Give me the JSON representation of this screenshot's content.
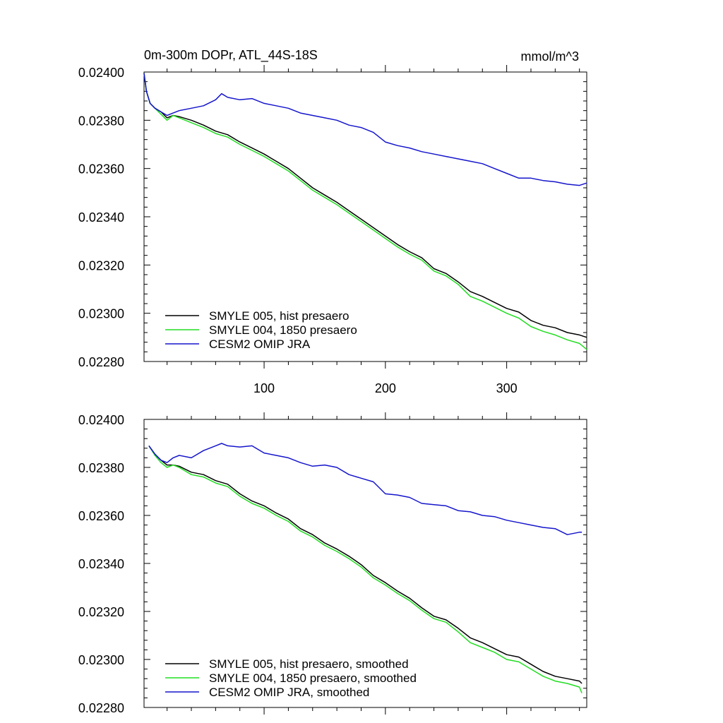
{
  "figure": {
    "title": "0m-300m DOPr, ATL_44S-18S",
    "units": "mmol/m^3"
  },
  "colors": {
    "black": "#000000",
    "green": "#22dd22",
    "blue": "#1515cc"
  },
  "chart_data": [
    {
      "type": "line",
      "title": "0m-300m DOPr, ATL_44S-18S",
      "units_label": "mmol/m^3",
      "xlim": [
        1,
        366
      ],
      "ylim": [
        0.0228,
        0.024
      ],
      "x_ticks": [
        100,
        200,
        300
      ],
      "x_tick_labels": [
        "100",
        "200",
        "300"
      ],
      "y_ticks": [
        0.0228,
        0.023,
        0.0232,
        0.0234,
        0.0236,
        0.0238,
        0.024
      ],
      "y_tick_labels": [
        "0.02280",
        "0.02300",
        "0.02320",
        "0.02340",
        "0.02360",
        "0.02380",
        "0.02400"
      ],
      "legend_position": "bottom-left",
      "series": [
        {
          "name": "SMYLE 005, hist presaero",
          "color": "#000000",
          "x": [
            1,
            3,
            6,
            10,
            15,
            20,
            25,
            30,
            40,
            50,
            60,
            70,
            80,
            90,
            100,
            110,
            120,
            130,
            140,
            150,
            160,
            170,
            180,
            190,
            200,
            210,
            220,
            230,
            240,
            250,
            260,
            270,
            280,
            290,
            300,
            310,
            320,
            330,
            340,
            350,
            360,
            366
          ],
          "y": [
            0.023995,
            0.02392,
            0.02387,
            0.02385,
            0.023835,
            0.02381,
            0.02382,
            0.023815,
            0.0238,
            0.02378,
            0.023755,
            0.02374,
            0.02371,
            0.023685,
            0.02366,
            0.02363,
            0.0236,
            0.02356,
            0.02352,
            0.02349,
            0.02346,
            0.023425,
            0.02339,
            0.023355,
            0.02332,
            0.023285,
            0.023255,
            0.02323,
            0.023185,
            0.023165,
            0.02313,
            0.02309,
            0.02307,
            0.023045,
            0.02302,
            0.023005,
            0.02297,
            0.02295,
            0.02294,
            0.02292,
            0.02291,
            0.0229
          ]
        },
        {
          "name": "SMYLE 004, 1850 presaero",
          "color": "#22dd22",
          "x": [
            1,
            3,
            6,
            10,
            15,
            20,
            25,
            30,
            40,
            50,
            60,
            70,
            80,
            90,
            100,
            110,
            120,
            130,
            140,
            150,
            160,
            170,
            180,
            190,
            200,
            210,
            220,
            230,
            240,
            250,
            260,
            270,
            280,
            290,
            300,
            310,
            320,
            330,
            340,
            350,
            360,
            366
          ],
          "y": [
            0.023995,
            0.02392,
            0.02387,
            0.02385,
            0.023825,
            0.0238,
            0.02382,
            0.02381,
            0.02379,
            0.02377,
            0.023745,
            0.02373,
            0.0237,
            0.023675,
            0.02365,
            0.02362,
            0.02359,
            0.02355,
            0.02351,
            0.02348,
            0.02345,
            0.023415,
            0.02338,
            0.023345,
            0.02331,
            0.023275,
            0.023245,
            0.02322,
            0.023175,
            0.023155,
            0.02312,
            0.02307,
            0.02305,
            0.023025,
            0.023,
            0.02298,
            0.022945,
            0.022925,
            0.02291,
            0.02289,
            0.022875,
            0.02285
          ]
        },
        {
          "name": "CESM2 OMIP JRA",
          "color": "#1515cc",
          "x": [
            1,
            3,
            6,
            10,
            15,
            20,
            25,
            30,
            40,
            50,
            60,
            65,
            70,
            80,
            90,
            100,
            110,
            120,
            130,
            140,
            150,
            160,
            170,
            180,
            190,
            200,
            210,
            220,
            230,
            240,
            250,
            260,
            270,
            280,
            290,
            300,
            310,
            320,
            330,
            340,
            350,
            360,
            366
          ],
          "y": [
            0.023995,
            0.02392,
            0.02387,
            0.02385,
            0.023835,
            0.02382,
            0.02383,
            0.02384,
            0.02385,
            0.02386,
            0.023885,
            0.02391,
            0.023895,
            0.023885,
            0.02389,
            0.02387,
            0.02386,
            0.02385,
            0.02383,
            0.02382,
            0.02381,
            0.0238,
            0.02378,
            0.02377,
            0.02375,
            0.02371,
            0.023695,
            0.023685,
            0.02367,
            0.02366,
            0.02365,
            0.02364,
            0.02363,
            0.02362,
            0.0236,
            0.02358,
            0.02356,
            0.02356,
            0.02355,
            0.023545,
            0.023535,
            0.02353,
            0.02354
          ]
        }
      ]
    },
    {
      "type": "line",
      "xlim": [
        1,
        366
      ],
      "ylim": [
        0.0228,
        0.024
      ],
      "x_ticks": [
        100,
        200,
        300
      ],
      "y_ticks": [
        0.0228,
        0.023,
        0.0232,
        0.0234,
        0.0236,
        0.0238,
        0.024
      ],
      "y_tick_labels": [
        "0.02280",
        "0.02300",
        "0.02320",
        "0.02340",
        "0.02360",
        "0.02380",
        "0.02400"
      ],
      "legend_position": "bottom-left",
      "series": [
        {
          "name": "SMYLE 005, hist presaero, smoothed",
          "color": "#000000",
          "x": [
            5,
            10,
            15,
            20,
            25,
            30,
            40,
            50,
            60,
            70,
            80,
            90,
            100,
            110,
            120,
            130,
            140,
            150,
            160,
            170,
            180,
            190,
            200,
            210,
            220,
            230,
            240,
            250,
            260,
            270,
            280,
            290,
            300,
            310,
            320,
            330,
            340,
            350,
            360,
            362
          ],
          "y": [
            0.02389,
            0.023855,
            0.02383,
            0.02381,
            0.02381,
            0.023805,
            0.02378,
            0.02377,
            0.023745,
            0.02373,
            0.02369,
            0.02366,
            0.02364,
            0.02361,
            0.023585,
            0.023545,
            0.02352,
            0.023485,
            0.02346,
            0.02343,
            0.023395,
            0.02335,
            0.02332,
            0.023285,
            0.023255,
            0.023215,
            0.02318,
            0.023165,
            0.02313,
            0.02309,
            0.02307,
            0.023045,
            0.02302,
            0.02301,
            0.02298,
            0.02295,
            0.02293,
            0.02292,
            0.02291,
            0.0229
          ]
        },
        {
          "name": "SMYLE 004, 1850 presaero, smoothed",
          "color": "#22dd22",
          "x": [
            5,
            10,
            15,
            20,
            25,
            30,
            40,
            50,
            60,
            70,
            80,
            90,
            100,
            110,
            120,
            130,
            140,
            150,
            160,
            170,
            180,
            190,
            200,
            210,
            220,
            230,
            240,
            250,
            260,
            270,
            280,
            290,
            300,
            310,
            320,
            330,
            340,
            350,
            360,
            362
          ],
          "y": [
            0.02389,
            0.02385,
            0.02382,
            0.0238,
            0.02381,
            0.0238,
            0.02377,
            0.02376,
            0.023735,
            0.02372,
            0.02368,
            0.02365,
            0.02363,
            0.0236,
            0.023575,
            0.023535,
            0.02351,
            0.023475,
            0.02345,
            0.02342,
            0.023385,
            0.02334,
            0.02331,
            0.023275,
            0.023245,
            0.023205,
            0.02317,
            0.023155,
            0.023115,
            0.02307,
            0.02305,
            0.02303,
            0.023,
            0.02299,
            0.02296,
            0.02293,
            0.02291,
            0.0229,
            0.022885,
            0.02286
          ]
        },
        {
          "name": "CESM2 OMIP JRA, smoothed",
          "color": "#1515cc",
          "x": [
            5,
            10,
            15,
            20,
            25,
            30,
            40,
            50,
            60,
            65,
            70,
            80,
            90,
            100,
            110,
            120,
            130,
            140,
            150,
            160,
            170,
            180,
            190,
            200,
            210,
            220,
            230,
            240,
            250,
            260,
            270,
            280,
            290,
            300,
            310,
            320,
            330,
            340,
            350,
            360,
            362
          ],
          "y": [
            0.02389,
            0.023855,
            0.02383,
            0.02382,
            0.02384,
            0.02385,
            0.02384,
            0.02387,
            0.02389,
            0.0239,
            0.02389,
            0.023885,
            0.02389,
            0.02386,
            0.02385,
            0.02384,
            0.02382,
            0.023805,
            0.02381,
            0.0238,
            0.02377,
            0.023755,
            0.02374,
            0.02369,
            0.023685,
            0.023675,
            0.02365,
            0.023645,
            0.02364,
            0.02362,
            0.023615,
            0.0236,
            0.023595,
            0.02358,
            0.02357,
            0.02356,
            0.02355,
            0.023545,
            0.02352,
            0.02353,
            0.02353
          ]
        }
      ]
    }
  ]
}
